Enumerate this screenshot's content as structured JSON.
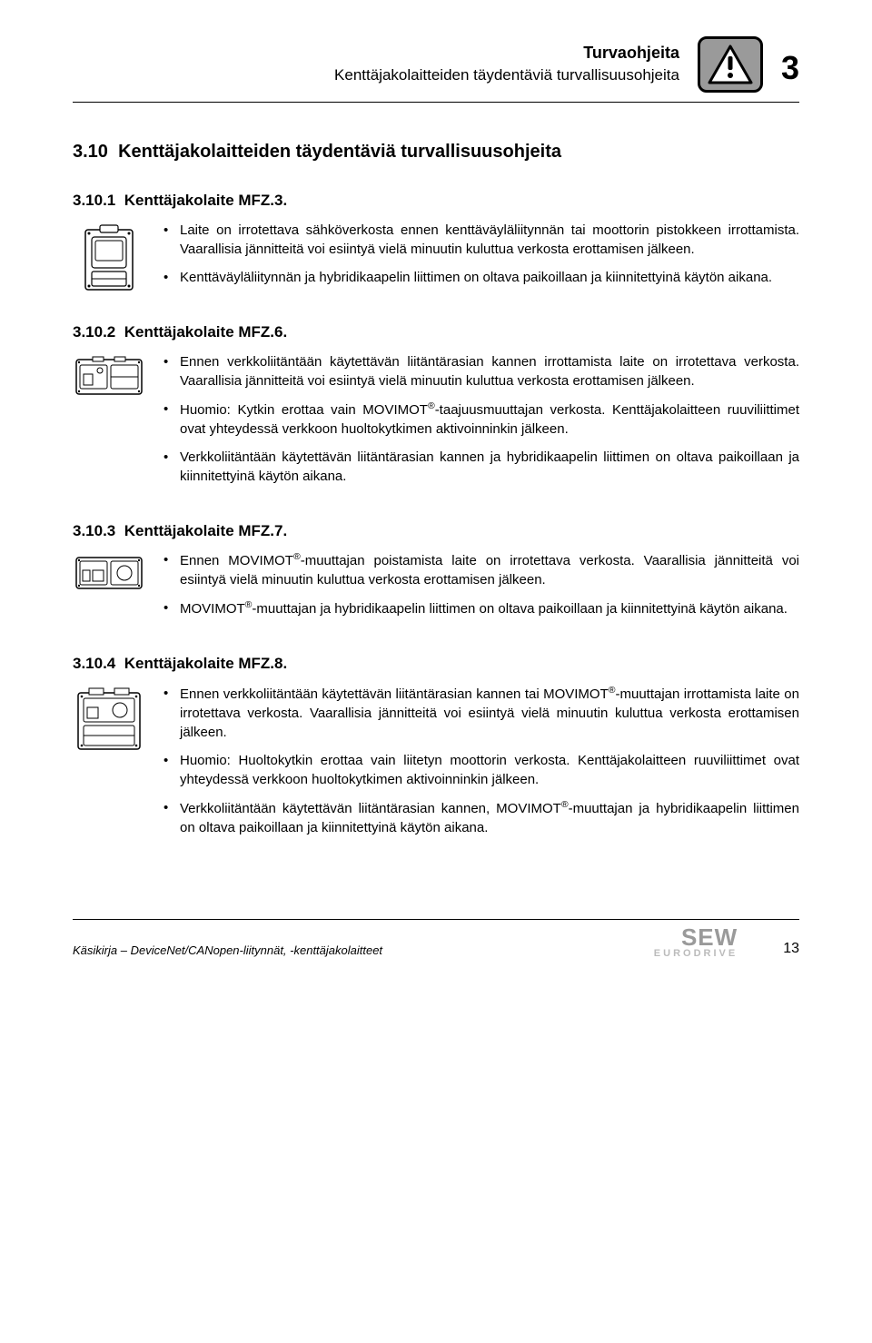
{
  "header": {
    "title": "Turvaohjeita",
    "subtitle": "Kenttäjakolaitteiden täydentäviä turvallisuusohjeita",
    "chapter": "3"
  },
  "section": {
    "number": "3.10",
    "title": "Kenttäjakolaitteiden täydentäviä turvallisuusohjeita"
  },
  "subs": [
    {
      "num": "3.10.1",
      "title": "Kenttäjakolaite MFZ.3.",
      "bullets": [
        "Laite on irrotettava sähköverkosta ennen kenttäväyläliitynnän tai moottorin pistokkeen irrottamista. Vaarallisia jännitteitä voi esiintyä vielä minuutin kuluttua verkosta erottamisen jälkeen.",
        "Kenttäväyläliitynnän ja hybridikaapelin liittimen on oltava paikoillaan ja kiinnitettyinä käytön aikana."
      ]
    },
    {
      "num": "3.10.2",
      "title": "Kenttäjakolaite MFZ.6.",
      "bullets": [
        "Ennen verkkoliitäntään käytettävän liitäntärasian kannen irrottamista laite on irrotettava verkosta. Vaarallisia jännitteitä voi esiintyä vielä minuutin kuluttua verkosta erottamisen jälkeen.",
        "Huomio: Kytkin erottaa vain MOVIMOT®-taajuusmuuttajan verkosta. Kenttäjakolaitteen ruuviliittimet ovat yhteydessä verkkoon huoltokytkimen aktivoinninkin jälkeen.",
        "Verkkoliitäntään käytettävän liitäntärasian kannen ja hybridikaapelin liittimen on oltava paikoillaan ja kiinnitettyinä käytön aikana."
      ]
    },
    {
      "num": "3.10.3",
      "title": "Kenttäjakolaite MFZ.7.",
      "bullets": [
        "Ennen MOVIMOT®-muuttajan poistamista laite on irrotettava verkosta. Vaarallisia jännitteitä voi esiintyä vielä minuutin kuluttua verkosta erottamisen jälkeen.",
        "MOVIMOT®-muuttajan ja hybridikaapelin liittimen on oltava paikoillaan ja kiinnitettyinä käytön aikana."
      ]
    },
    {
      "num": "3.10.4",
      "title": "Kenttäjakolaite MFZ.8.",
      "bullets": [
        "Ennen verkkoliitäntään käytettävän liitäntärasian kannen tai MOVIMOT®-muuttajan irrottamista laite on irrotettava verkosta. Vaarallisia jännitteitä voi esiintyä vielä minuutin kuluttua verkosta erottamisen jälkeen.",
        "Huomio: Huoltokytkin erottaa vain liitetyn moottorin verkosta. Kenttäjakolaitteen ruuviliittimet ovat yhteydessä verkkoon huoltokytkimen aktivoinninkin jälkeen.",
        "Verkkoliitäntään käytettävän liitäntärasian kannen, MOVIMOT®-muuttajan ja hybridikaapelin liittimen on oltava paikoillaan ja kiinnitettyinä käytön aikana."
      ]
    }
  ],
  "footer": {
    "left": "Käsikirja – DeviceNet/CANopen-liitynnät, -kenttäjakolaitteet",
    "logo_top": "SEW",
    "logo_bottom": "EURODRIVE",
    "page": "13"
  },
  "icon_colors": {
    "stroke": "#000000",
    "fill": "#ffffff",
    "badge_bg": "#9a9a9a"
  }
}
